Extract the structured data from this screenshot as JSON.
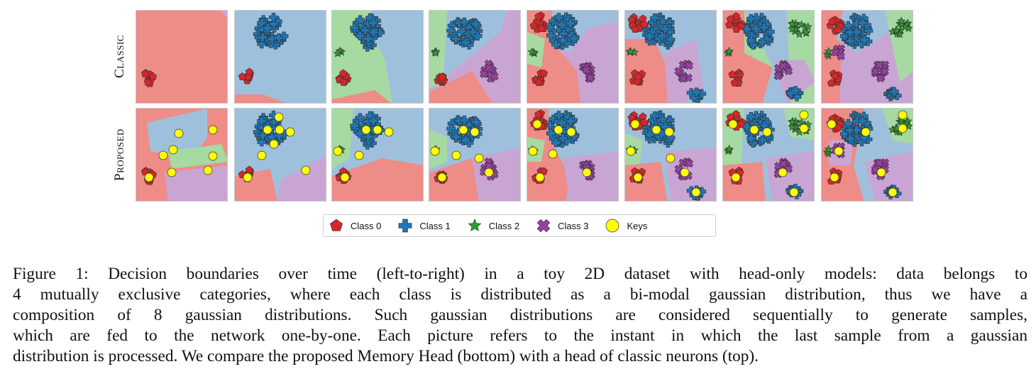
{
  "row_labels": {
    "classic": "Classic",
    "proposed": "Proposed"
  },
  "legend": [
    {
      "label": "Class 0",
      "marker": "pentagon-icon",
      "color": "#d62728"
    },
    {
      "label": "Class 1",
      "marker": "plus-icon",
      "color": "#1f77b4"
    },
    {
      "label": "Class 2",
      "marker": "star-icon",
      "color": "#2ca02c"
    },
    {
      "label": "Class 3",
      "marker": "x-icon",
      "color": "#9b3fa5"
    },
    {
      "label": "Keys",
      "marker": "circle-icon",
      "color": "#ffff00"
    }
  ],
  "colors": {
    "region_red": "#ee8c88",
    "region_blue": "#9fc0dc",
    "region_green": "#a7d9a2",
    "region_purple": "#c9a5d3",
    "class0": "#d62728",
    "class1": "#1f77b4",
    "class2": "#2ca02c",
    "class3": "#9b3fa5",
    "keys": "#ffff00"
  },
  "caption": [
    "Figure 1: Decision boundaries over time (left-to-right) in a toy 2D dataset with head-only models: data belongs to",
    "4 mutually exclusive categories, where each class is distributed as a bi-modal gaussian distribution, thus we have a",
    "composition of 8 gaussian distributions. Such gaussian distributions are considered sequentially to generate samples,",
    "which are fed to the network one-by-one. Each picture refers to the instant in which the last sample from a gaussian",
    "distribution is processed. We compare the proposed Memory Head (bottom) with a head of classic neurons (top)."
  ]
}
